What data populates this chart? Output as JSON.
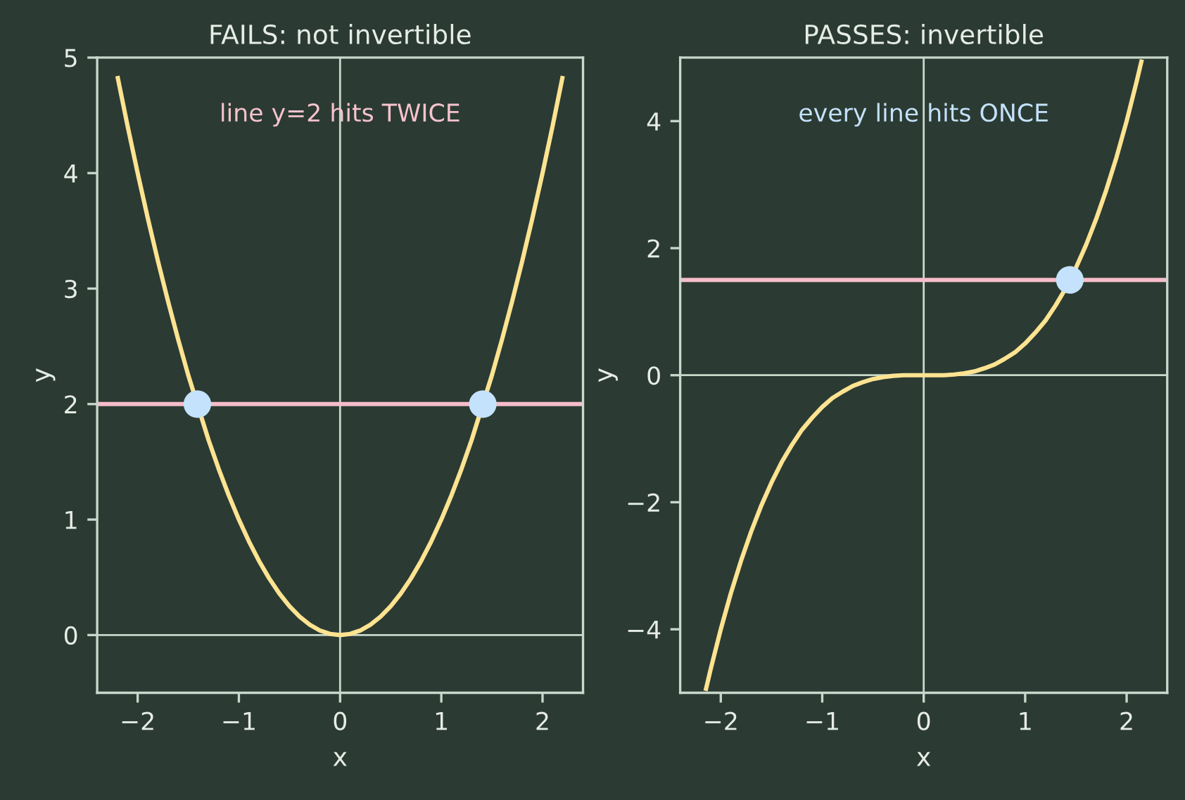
{
  "chart_data": [
    {
      "type": "line",
      "title": "FAILS: not invertible",
      "xlabel": "x",
      "ylabel": "y",
      "xlim": [
        -2.4,
        2.4
      ],
      "ylim": [
        -0.5,
        5
      ],
      "xticks": [
        -2,
        -1,
        0,
        1,
        2
      ],
      "yticks": [
        0,
        1,
        2,
        3,
        4,
        5
      ],
      "series": [
        {
          "color": "#ffe391",
          "x": [
            -2.2,
            -2.1,
            -2.0,
            -1.9,
            -1.8,
            -1.7,
            -1.6,
            -1.5,
            -1.3,
            -1.2,
            -1.1,
            -1.0,
            -0.9,
            -0.8,
            -0.7,
            -0.6,
            -0.5,
            -0.4,
            -0.3,
            -0.2,
            -0.1,
            0,
            0.1,
            0.2,
            0.3,
            0.4,
            0.5,
            0.6,
            0.7,
            0.8,
            0.9,
            1.0,
            1.1,
            1.2,
            1.3,
            1.5,
            1.6,
            1.7,
            1.8,
            1.9,
            2.0,
            2.1,
            2.2
          ],
          "values": [
            4.84,
            4.41,
            4.0,
            3.61,
            3.24,
            2.89,
            2.56,
            2.25,
            1.69,
            1.44,
            1.21,
            1.0,
            0.81,
            0.64,
            0.49,
            0.36,
            0.25,
            0.16,
            0.09,
            0.04,
            0.01,
            0,
            0.01,
            0.04,
            0.09,
            0.16,
            0.25,
            0.36,
            0.49,
            0.64,
            0.81,
            1.0,
            1.21,
            1.44,
            1.69,
            2.25,
            2.56,
            2.89,
            3.24,
            3.61,
            4.0,
            4.41,
            4.84
          ]
        },
        {
          "type": "scatter",
          "color": "#c4e2fb",
          "marker": "circle",
          "x": [
            -1.41,
            1.41
          ],
          "values": [
            2,
            2
          ]
        }
      ],
      "ref_lines": [
        {
          "axis": "y",
          "value": 0
        },
        {
          "axis": "x",
          "value": 0
        },
        {
          "axis": "y",
          "value": 2,
          "color": "#f7bccb"
        }
      ],
      "annotations": [
        "line y=2 hits TWICE"
      ]
    },
    {
      "type": "line",
      "title": "PASSES: invertible",
      "xlabel": "x",
      "ylabel": "y",
      "xlim": [
        -2.4,
        2.4
      ],
      "ylim": [
        -5,
        5
      ],
      "xticks": [
        -2,
        -1,
        0,
        1,
        2
      ],
      "yticks": [
        -4,
        -2,
        0,
        2,
        4
      ],
      "series": [
        {
          "color": "#ffe391",
          "x": [
            -2.15,
            -2.1,
            -2.0,
            -1.9,
            -1.8,
            -1.7,
            -1.6,
            -1.5,
            -1.4,
            -1.3,
            -1.2,
            -1.1,
            -1.0,
            -0.9,
            -0.8,
            -0.7,
            -0.6,
            -0.5,
            -0.4,
            -0.3,
            -0.2,
            -0.1,
            0,
            0.1,
            0.2,
            0.3,
            0.4,
            0.5,
            0.6,
            0.7,
            0.8,
            0.9,
            1.0,
            1.1,
            1.2,
            1.3,
            1.4,
            1.5,
            1.6,
            1.7,
            1.8,
            1.9,
            2.0,
            2.1,
            2.15
          ],
          "values": [
            -4.97,
            -4.63,
            -4.0,
            -3.43,
            -2.92,
            -2.46,
            -2.05,
            -1.69,
            -1.37,
            -1.1,
            -0.86,
            -0.67,
            -0.5,
            -0.36,
            -0.26,
            -0.17,
            -0.11,
            -0.06,
            -0.03,
            -0.01,
            0,
            0,
            0,
            0,
            0,
            0.01,
            0.03,
            0.06,
            0.11,
            0.17,
            0.26,
            0.36,
            0.5,
            0.67,
            0.86,
            1.1,
            1.37,
            1.69,
            2.05,
            2.46,
            2.92,
            3.43,
            4.0,
            4.63,
            4.97
          ]
        },
        {
          "type": "scatter",
          "color": "#c4e2fb",
          "marker": "circle",
          "x": [
            1.44
          ],
          "values": [
            1.5
          ]
        }
      ],
      "ref_lines": [
        {
          "axis": "y",
          "value": 0
        },
        {
          "axis": "x",
          "value": 0
        },
        {
          "axis": "y",
          "value": 1.5,
          "color": "#f7bccb"
        }
      ],
      "annotations": [
        "every line hits ONCE"
      ]
    }
  ]
}
